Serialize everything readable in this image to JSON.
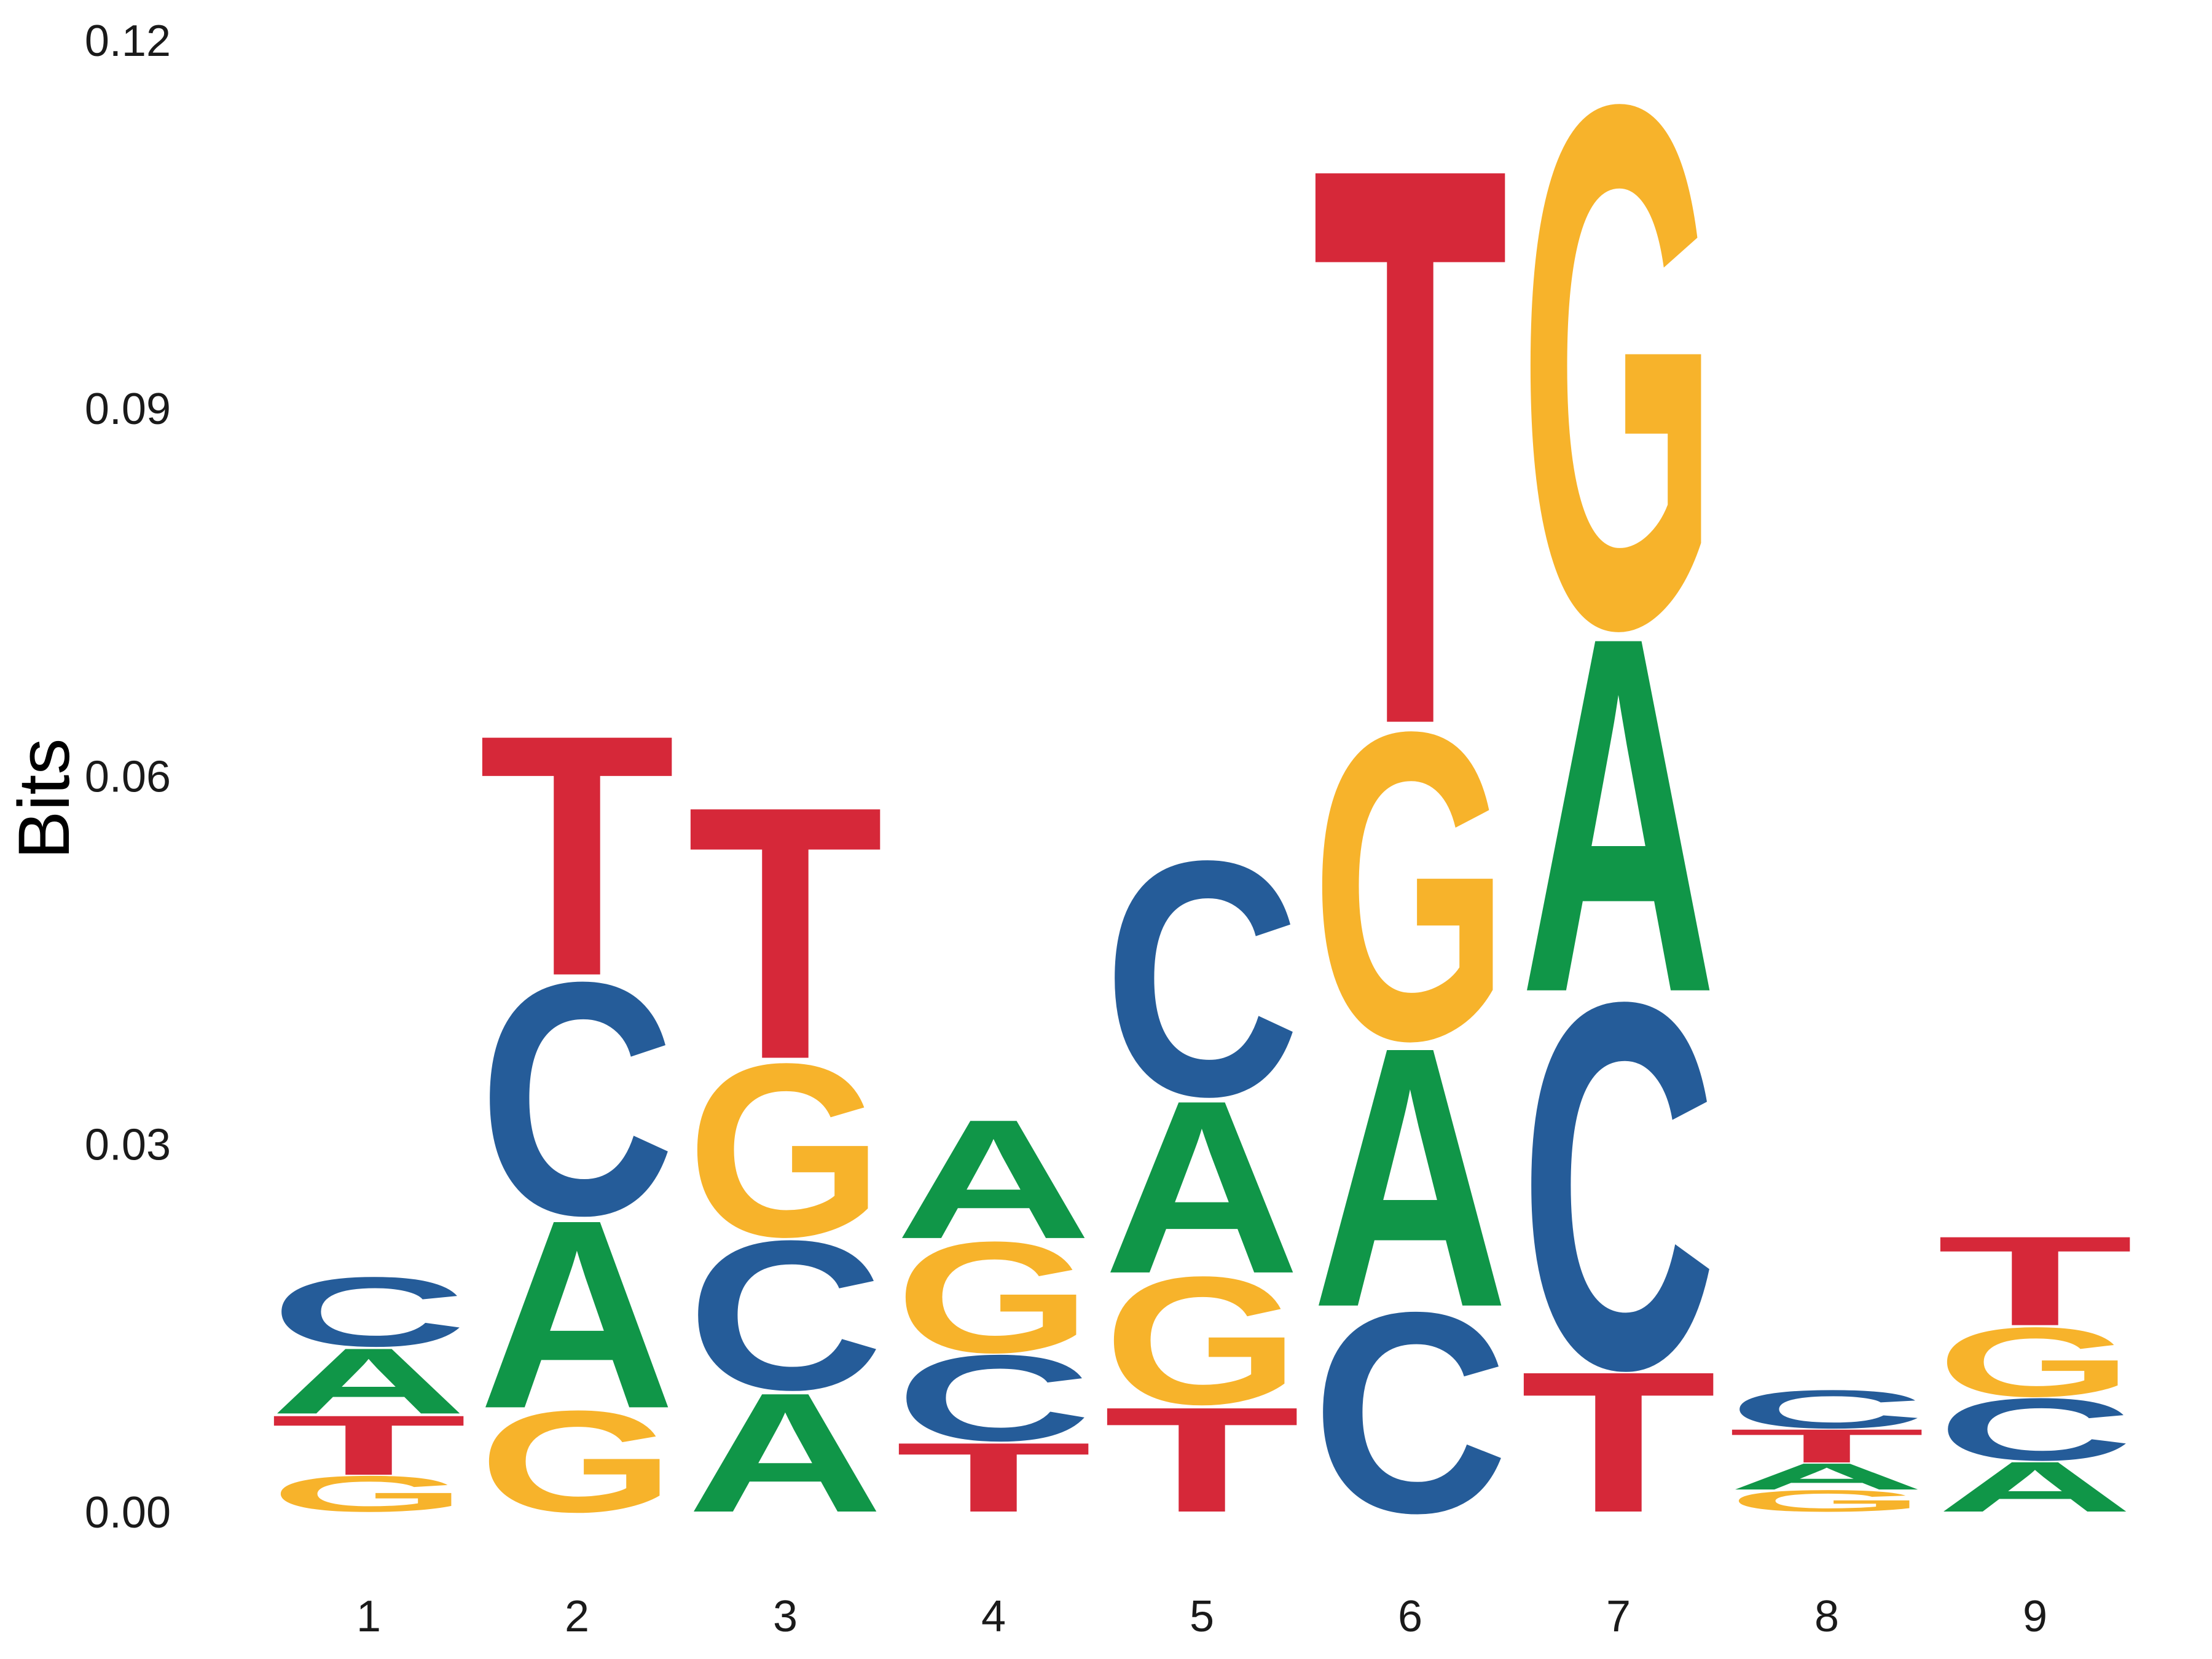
{
  "chart_data": {
    "type": "sequence-logo",
    "ylabel": "Bits",
    "ylim": [
      0,
      0.12
    ],
    "yticks": [
      "0.00",
      "0.03",
      "0.06",
      "0.09",
      "0.12"
    ],
    "ytick_values": [
      0,
      0.03,
      0.06,
      0.09,
      0.12
    ],
    "positions": [
      "1",
      "2",
      "3",
      "4",
      "5",
      "6",
      "7",
      "8",
      "9"
    ],
    "colors": {
      "A": "#109648",
      "C": "#255c99",
      "G": "#f7b32b",
      "T": "#d62839"
    },
    "stacks": [
      [
        {
          "letter": "G",
          "bits": 0.003
        },
        {
          "letter": "T",
          "bits": 0.005
        },
        {
          "letter": "A",
          "bits": 0.0055
        },
        {
          "letter": "C",
          "bits": 0.0058
        }
      ],
      [
        {
          "letter": "G",
          "bits": 0.0085
        },
        {
          "letter": "A",
          "bits": 0.0158
        },
        {
          "letter": "C",
          "bits": 0.0195
        },
        {
          "letter": "T",
          "bits": 0.0202
        }
      ],
      [
        {
          "letter": "A",
          "bits": 0.01
        },
        {
          "letter": "C",
          "bits": 0.0125
        },
        {
          "letter": "G",
          "bits": 0.0145
        },
        {
          "letter": "T",
          "bits": 0.0212
        }
      ],
      [
        {
          "letter": "T",
          "bits": 0.0058
        },
        {
          "letter": "C",
          "bits": 0.0072
        },
        {
          "letter": "G",
          "bits": 0.0093
        },
        {
          "letter": "A",
          "bits": 0.01
        }
      ],
      [
        {
          "letter": "T",
          "bits": 0.0088
        },
        {
          "letter": "G",
          "bits": 0.0107
        },
        {
          "letter": "A",
          "bits": 0.0145
        },
        {
          "letter": "C",
          "bits": 0.0197
        }
      ],
      [
        {
          "letter": "C",
          "bits": 0.0168
        },
        {
          "letter": "A",
          "bits": 0.0218
        },
        {
          "letter": "G",
          "bits": 0.0258
        },
        {
          "letter": "T",
          "bits": 0.0468
        }
      ],
      [
        {
          "letter": "T",
          "bits": 0.0118
        },
        {
          "letter": "C",
          "bits": 0.0307
        },
        {
          "letter": "A",
          "bits": 0.0298
        },
        {
          "letter": "G",
          "bits": 0.0438
        }
      ],
      [
        {
          "letter": "G",
          "bits": 0.0018
        },
        {
          "letter": "A",
          "bits": 0.0022
        },
        {
          "letter": "T",
          "bits": 0.0028
        },
        {
          "letter": "C",
          "bits": 0.0032
        }
      ],
      [
        {
          "letter": "A",
          "bits": 0.0042
        },
        {
          "letter": "C",
          "bits": 0.0052
        },
        {
          "letter": "G",
          "bits": 0.0058
        },
        {
          "letter": "T",
          "bits": 0.0075
        }
      ]
    ]
  }
}
